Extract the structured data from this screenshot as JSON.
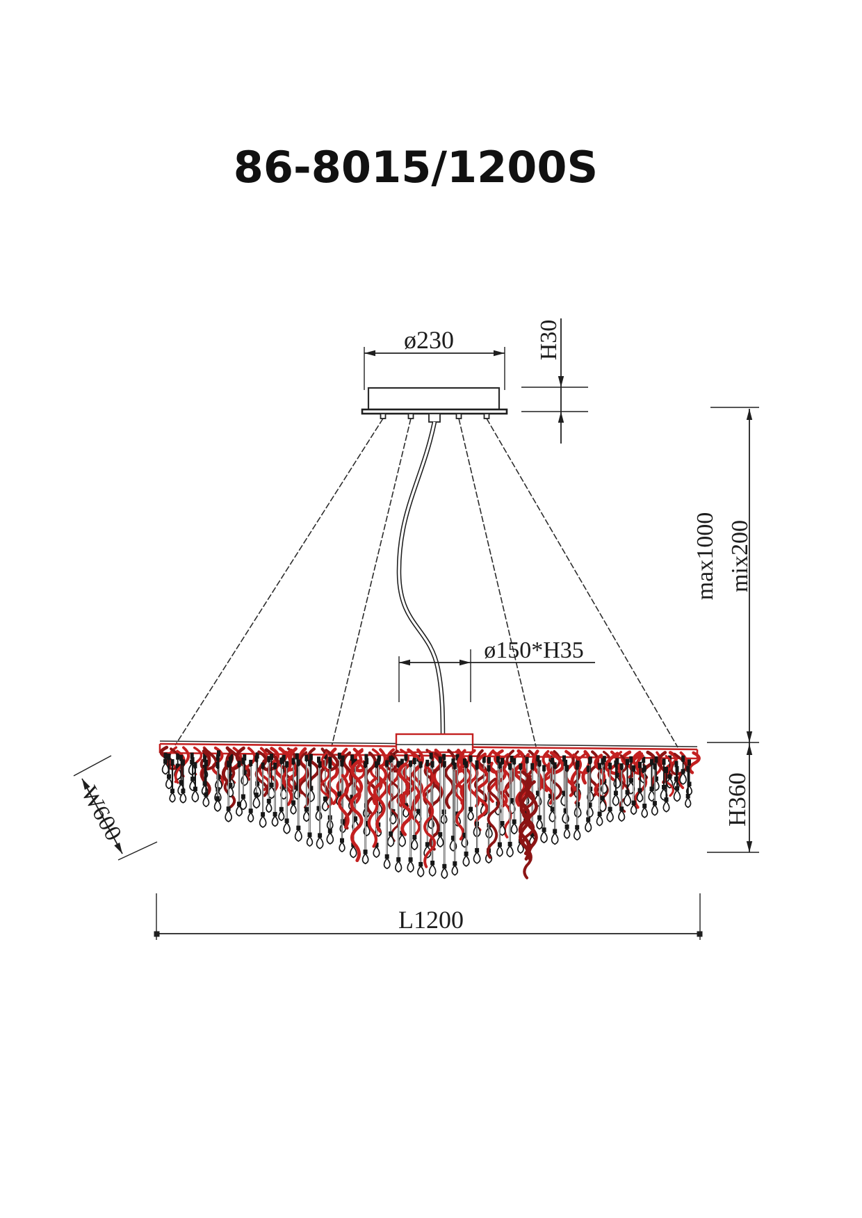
{
  "title": "86-8015/1200S",
  "drawing": {
    "dims": {
      "canopy_diameter": "ø230",
      "canopy_height": "H30",
      "suspension_max": "max1000",
      "suspension_min": "mix200",
      "hub_size": "ø150*H35",
      "body_width": "W600",
      "body_height": "H360",
      "body_length": "L1200"
    },
    "colors": {
      "line": "#1f1f1f",
      "wire_red": "#c32020",
      "wire_dark_red": "#8c1414",
      "crystal_fill": "#ffffff",
      "background": "#ffffff"
    }
  }
}
